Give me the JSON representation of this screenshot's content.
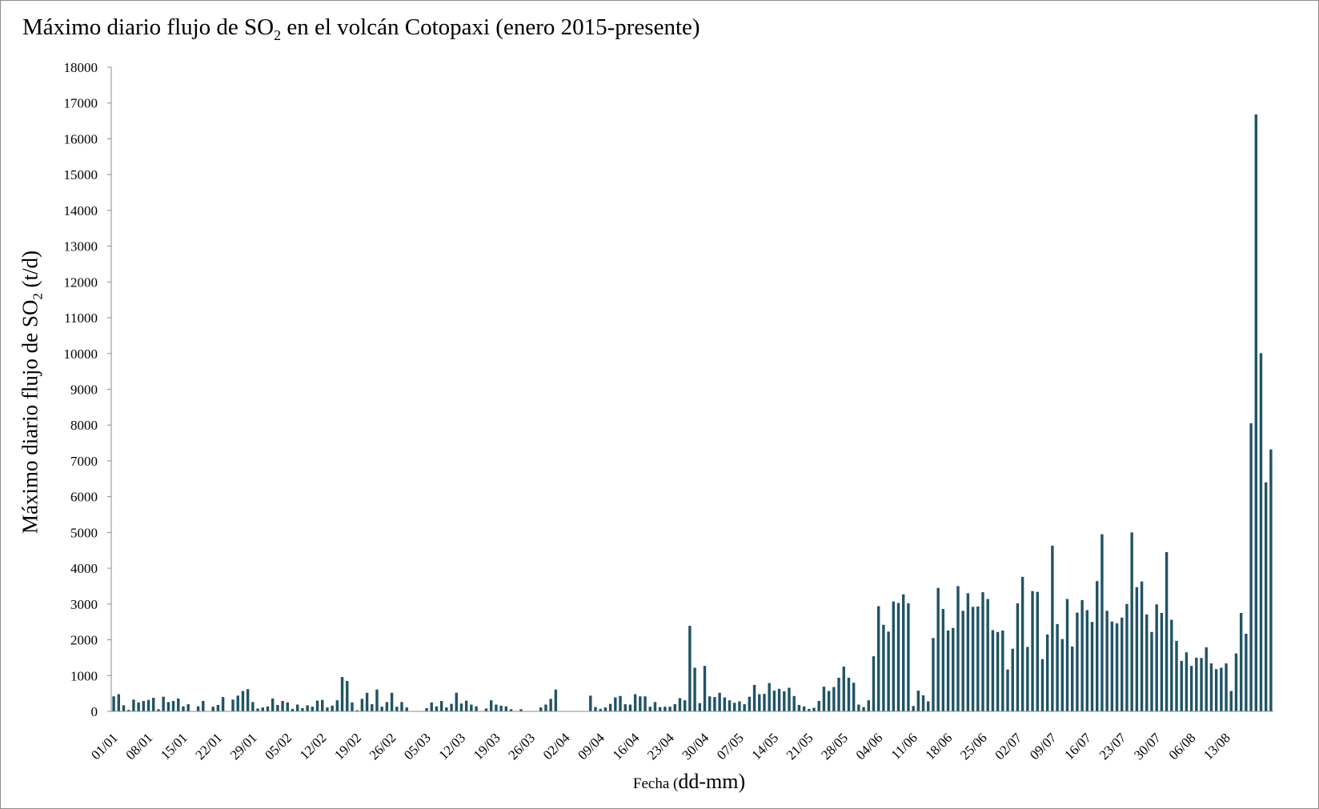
{
  "chart_data": {
    "type": "bar",
    "title": {
      "main": "Máximo diario flujo de SO",
      "sub": "2",
      "rest": " en el volcán Cotopaxi (enero 2015-presente)"
    },
    "ylabel": {
      "main": "Máximo diario flujo de SO",
      "sub": "2",
      "rest": " (t/d)"
    },
    "xlabel": {
      "small": "Fecha (",
      "big": "dd-mm)"
    },
    "ylim": [
      0,
      18000
    ],
    "yticks": [
      0,
      1000,
      2000,
      3000,
      4000,
      5000,
      6000,
      7000,
      8000,
      9000,
      10000,
      11000,
      12000,
      13000,
      14000,
      15000,
      16000,
      17000,
      18000
    ],
    "xtick_labels": [
      "01/01",
      "08/01",
      "15/01",
      "22/01",
      "29/01",
      "05/02",
      "12/02",
      "19/02",
      "26/02",
      "05/03",
      "12/03",
      "19/03",
      "26/03",
      "02/04",
      "09/04",
      "16/04",
      "23/04",
      "30/04",
      "07/05",
      "14/05",
      "21/05",
      "28/05",
      "04/06",
      "11/06",
      "18/06",
      "25/06",
      "02/07",
      "09/07",
      "16/07",
      "23/07",
      "30/07",
      "06/08",
      "13/08"
    ],
    "bar_color": "#1f5466",
    "values": [
      420,
      480,
      170,
      40,
      330,
      250,
      290,
      320,
      380,
      60,
      410,
      260,
      290,
      360,
      140,
      200,
      0,
      140,
      290,
      0,
      130,
      180,
      400,
      0,
      330,
      440,
      570,
      620,
      260,
      80,
      110,
      140,
      360,
      180,
      290,
      250,
      70,
      190,
      90,
      170,
      130,
      300,
      320,
      110,
      160,
      310,
      960,
      850,
      250,
      30,
      350,
      520,
      200,
      610,
      130,
      260,
      520,
      130,
      260,
      110,
      0,
      0,
      0,
      90,
      250,
      140,
      290,
      110,
      210,
      520,
      220,
      300,
      190,
      140,
      0,
      80,
      310,
      190,
      160,
      140,
      60,
      0,
      60,
      0,
      0,
      0,
      110,
      190,
      350,
      610,
      0,
      0,
      0,
      0,
      0,
      0,
      440,
      120,
      70,
      110,
      210,
      390,
      430,
      200,
      190,
      480,
      420,
      420,
      130,
      260,
      120,
      130,
      130,
      200,
      370,
      310,
      2390,
      1220,
      230,
      1270,
      420,
      400,
      520,
      390,
      310,
      240,
      280,
      200,
      410,
      740,
      480,
      490,
      790,
      580,
      630,
      560,
      660,
      430,
      180,
      140,
      70,
      100,
      290,
      690,
      570,
      680,
      940,
      1250,
      940,
      800,
      190,
      120,
      310,
      1540,
      2940,
      2420,
      2230,
      3070,
      3030,
      3270,
      3020,
      150,
      580,
      450,
      280,
      2050,
      3450,
      2860,
      2260,
      2330,
      3500,
      2810,
      3300,
      2920,
      2930,
      3330,
      3140,
      2270,
      2220,
      2260,
      1170,
      1750,
      3020,
      3760,
      1800,
      3360,
      3340,
      1460,
      2150,
      4630,
      2440,
      2020,
      3140,
      1810,
      2760,
      3110,
      2830,
      2500,
      3640,
      4950,
      2810,
      2510,
      2460,
      2620,
      3000,
      5000,
      3470,
      3630,
      2710,
      2220,
      2990,
      2750,
      4450,
      2560,
      1970,
      1410,
      1650,
      1270,
      1500,
      1490,
      1790,
      1340,
      1180,
      1220,
      1340,
      570,
      1620,
      2750,
      2170,
      8050,
      16680,
      10010,
      6400,
      7320
    ],
    "grid": false,
    "legend": "none"
  }
}
